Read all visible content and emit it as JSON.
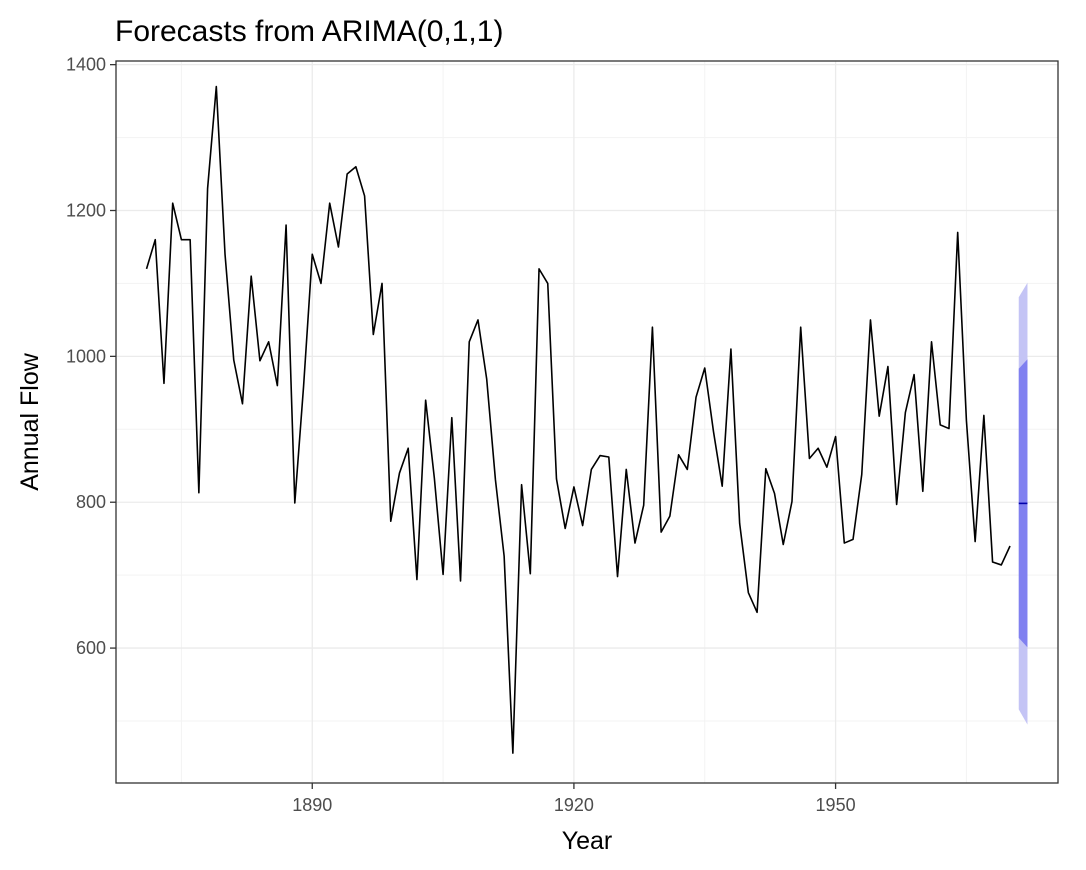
{
  "chart_data": {
    "type": "line",
    "title": "Forecasts from ARIMA(0,1,1)",
    "xlabel": "Year",
    "ylabel": "Annual Flow",
    "xlim": [
      1867.5,
      1975.5
    ],
    "ylim": [
      415,
      1405
    ],
    "xticks": [
      1890,
      1920,
      1950
    ],
    "yticks": [
      600,
      800,
      1000,
      1200,
      1400
    ],
    "grid": true,
    "series": [
      {
        "x": [
          1871,
          1872,
          1873,
          1874,
          1875,
          1876,
          1877,
          1878,
          1879,
          1880,
          1881,
          1882,
          1883,
          1884,
          1885,
          1886,
          1887,
          1888,
          1889,
          1890,
          1891,
          1892,
          1893,
          1894,
          1895,
          1896,
          1897,
          1898,
          1899,
          1900,
          1901,
          1902,
          1903,
          1904,
          1905,
          1906,
          1907,
          1908,
          1909,
          1910,
          1911,
          1912,
          1913,
          1914,
          1915,
          1916,
          1917,
          1918,
          1919,
          1920,
          1921,
          1922,
          1923,
          1924,
          1925,
          1926,
          1927,
          1928,
          1929,
          1930,
          1931,
          1932,
          1933,
          1934,
          1935,
          1936,
          1937,
          1938,
          1939,
          1940,
          1941,
          1942,
          1943,
          1944,
          1945,
          1946,
          1947,
          1948,
          1949,
          1950,
          1951,
          1952,
          1953,
          1954,
          1955,
          1956,
          1957,
          1958,
          1959,
          1960,
          1961,
          1962,
          1963,
          1964,
          1965,
          1966,
          1967,
          1968,
          1969,
          1970
        ],
        "values": [
          1120,
          1160,
          963,
          1210,
          1160,
          1160,
          813,
          1230,
          1370,
          1140,
          995,
          935,
          1110,
          994,
          1020,
          960,
          1180,
          799,
          958,
          1140,
          1100,
          1210,
          1150,
          1250,
          1260,
          1220,
          1030,
          1100,
          774,
          840,
          874,
          694,
          940,
          833,
          701,
          916,
          692,
          1020,
          1050,
          969,
          831,
          726,
          456,
          824,
          702,
          1120,
          1100,
          832,
          764,
          821,
          768,
          845,
          864,
          862,
          698,
          845,
          744,
          796,
          1040,
          759,
          781,
          865,
          845,
          944,
          984,
          897,
          822,
          1010,
          771,
          676,
          649,
          846,
          812,
          742,
          801,
          1040,
          860,
          874,
          848,
          890,
          744,
          749,
          838,
          1050,
          918,
          986,
          797,
          923,
          975,
          815,
          1020,
          906,
          901,
          1170,
          912,
          746,
          919,
          718,
          714,
          740
        ]
      }
    ],
    "forecast": {
      "x": [
        1971,
        1972
      ],
      "point": [
        798.4,
        798.4
      ],
      "lo80": [
        614,
        601
      ],
      "hi80": [
        983,
        996
      ],
      "lo95": [
        516,
        495
      ],
      "hi95": [
        1081,
        1101
      ]
    },
    "colors": {
      "series": "#000000",
      "forecast_line": "#0000aa",
      "band80": "#8080f0",
      "band95": "#c4c4f5",
      "grid_major": "#ebebeb",
      "grid_minor": "#f3f3f3",
      "border": "#333333"
    }
  }
}
